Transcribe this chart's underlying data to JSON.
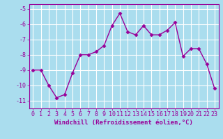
{
  "x": [
    0,
    1,
    2,
    3,
    4,
    5,
    6,
    7,
    8,
    9,
    10,
    11,
    12,
    13,
    14,
    15,
    16,
    17,
    18,
    19,
    20,
    21,
    22,
    23
  ],
  "y": [
    -9.0,
    -9.0,
    -10.0,
    -10.8,
    -10.6,
    -9.2,
    -8.0,
    -8.0,
    -7.8,
    -7.4,
    -6.1,
    -5.3,
    -6.5,
    -6.7,
    -6.1,
    -6.7,
    -6.7,
    -6.4,
    -5.9,
    -8.1,
    -7.6,
    -7.6,
    -8.6,
    -10.2
  ],
  "color": "#990099",
  "bg_color": "#aaddee",
  "grid_color": "#cceeee",
  "xlabel": "Windchill (Refroidissement éolien,°C)",
  "ylim": [
    -11.5,
    -4.7
  ],
  "xlim": [
    -0.5,
    23.5
  ],
  "yticks": [
    -5,
    -6,
    -7,
    -8,
    -9,
    -10,
    -11
  ],
  "xticks": [
    0,
    1,
    2,
    3,
    4,
    5,
    6,
    7,
    8,
    9,
    10,
    11,
    12,
    13,
    14,
    15,
    16,
    17,
    18,
    19,
    20,
    21,
    22,
    23
  ],
  "marker": "D",
  "markersize": 2.5,
  "linewidth": 1.0,
  "xlabel_fontsize": 6.5,
  "tick_fontsize": 6.0,
  "fig_width": 3.2,
  "fig_height": 2.0,
  "dpi": 100
}
